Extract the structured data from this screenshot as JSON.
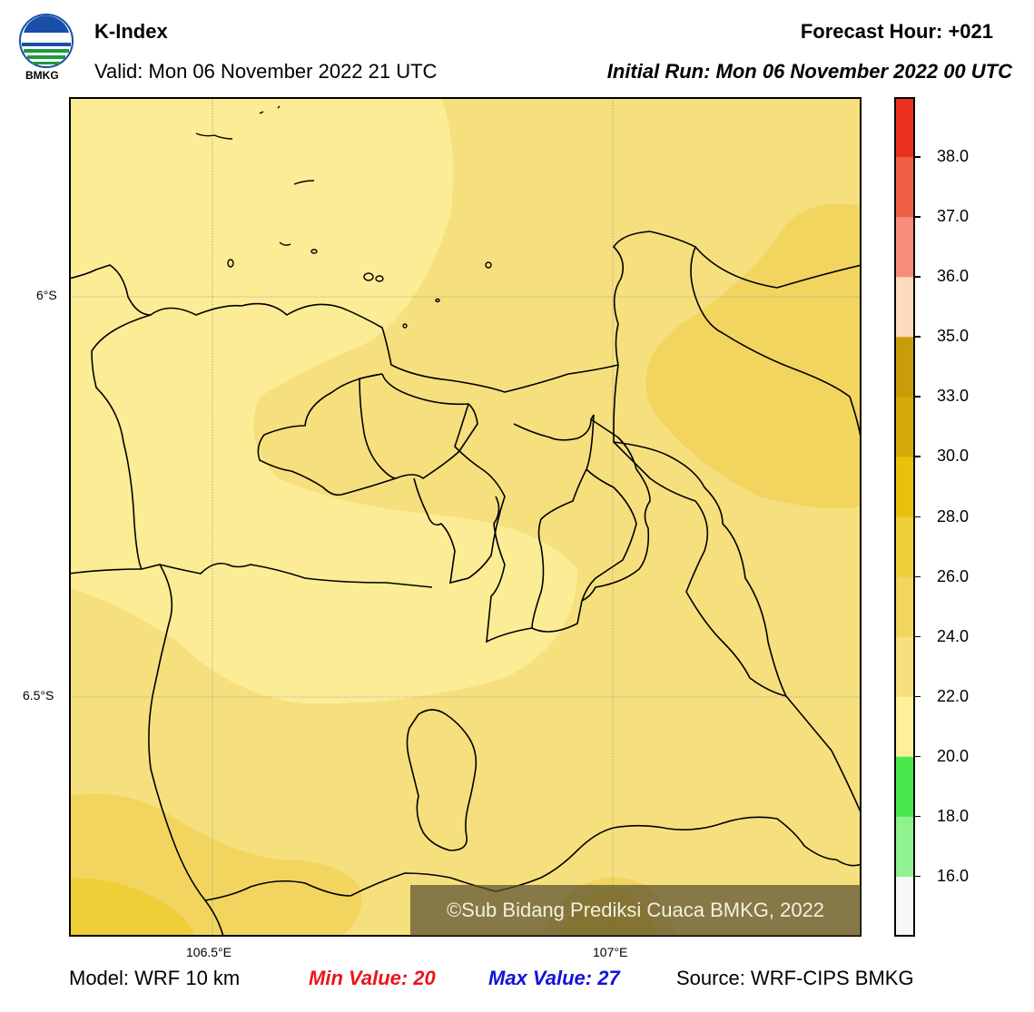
{
  "header": {
    "title": "K-Index",
    "valid": "Valid: Mon 06 November 2022 21 UTC",
    "forecast_hour": "Forecast Hour: +021",
    "initial_run": "Initial Run: Mon 06 November 2022 00 UTC"
  },
  "logo": {
    "text": "BMKG",
    "icon": "bmkg-logo-icon"
  },
  "map": {
    "lat_ticks": [
      "6°S",
      "6.5°S"
    ],
    "lon_ticks": [
      "106.5°E",
      "107°E"
    ],
    "copyright": "©Sub Bidang Prediksi Cuaca BMKG, 2022"
  },
  "colorbar": {
    "labels": [
      "38.0",
      "37.0",
      "36.0",
      "35.0",
      "33.0",
      "30.0",
      "28.0",
      "26.0",
      "24.0",
      "22.0",
      "20.0",
      "18.0",
      "16.0"
    ],
    "colors": [
      "#e9301c",
      "#ee5f45",
      "#f68d7a",
      "#fdd9c0",
      "#c99d09",
      "#d5aa08",
      "#e8c20a",
      "#efcf38",
      "#f1d55e",
      "#f6e07d",
      "#fdf099",
      "#4ae84f",
      "#8ef28f",
      "#f7f7f7"
    ]
  },
  "footer": {
    "model": "Model: WRF 10 km",
    "min_value": "Min Value: 20",
    "max_value": "Max Value: 27",
    "source": "Source: WRF-CIPS BMKG"
  }
}
